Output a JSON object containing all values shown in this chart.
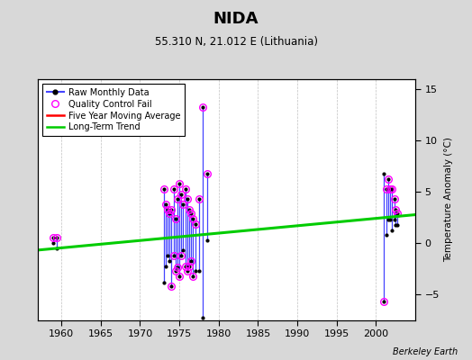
{
  "title": "NIDA",
  "subtitle": "55.310 N, 21.012 E (Lithuania)",
  "ylabel_right": "Temperature Anomaly (°C)",
  "credit": "Berkeley Earth",
  "xlim": [
    1957,
    2005
  ],
  "ylim": [
    -7.5,
    16
  ],
  "yticks": [
    -5,
    0,
    5,
    10,
    15
  ],
  "xticks": [
    1960,
    1965,
    1970,
    1975,
    1980,
    1985,
    1990,
    1995,
    2000
  ],
  "bg_color": "#d8d8d8",
  "plot_bg_color": "#ffffff",
  "raw_data_segments": [
    {
      "x": [
        1959.0,
        1959.0
      ],
      "y": [
        0.05,
        0.55
      ]
    },
    {
      "x": [
        1959.4,
        1959.4
      ],
      "y": [
        -0.5,
        0.55
      ]
    },
    {
      "x": [
        1973.0,
        1973.0
      ],
      "y": [
        -3.8,
        5.3
      ]
    },
    {
      "x": [
        1973.25,
        1973.25
      ],
      "y": [
        -2.2,
        3.8
      ]
    },
    {
      "x": [
        1973.5,
        1973.5
      ],
      "y": [
        -1.2,
        3.3
      ]
    },
    {
      "x": [
        1973.75,
        1973.75
      ],
      "y": [
        -1.7,
        2.9
      ]
    },
    {
      "x": [
        1974.0,
        1974.0
      ],
      "y": [
        -4.2,
        3.3
      ]
    },
    {
      "x": [
        1974.25,
        1974.25
      ],
      "y": [
        -1.2,
        5.3
      ]
    },
    {
      "x": [
        1974.5,
        1974.5
      ],
      "y": [
        -2.7,
        2.4
      ]
    },
    {
      "x": [
        1974.75,
        1974.75
      ],
      "y": [
        -2.3,
        4.3
      ]
    },
    {
      "x": [
        1975.0,
        1975.0
      ],
      "y": [
        -3.2,
        5.8
      ]
    },
    {
      "x": [
        1975.25,
        1975.25
      ],
      "y": [
        -1.2,
        4.8
      ]
    },
    {
      "x": [
        1975.5,
        1975.5
      ],
      "y": [
        -0.7,
        3.8
      ]
    },
    {
      "x": [
        1975.75,
        1975.75
      ],
      "y": [
        -2.2,
        5.3
      ]
    },
    {
      "x": [
        1976.0,
        1976.0
      ],
      "y": [
        -2.7,
        4.3
      ]
    },
    {
      "x": [
        1976.25,
        1976.25
      ],
      "y": [
        -2.2,
        3.3
      ]
    },
    {
      "x": [
        1976.5,
        1976.5
      ],
      "y": [
        -1.7,
        2.9
      ]
    },
    {
      "x": [
        1976.75,
        1976.75
      ],
      "y": [
        -3.2,
        2.4
      ]
    },
    {
      "x": [
        1977.0,
        1977.0
      ],
      "y": [
        -2.7,
        1.9
      ]
    },
    {
      "x": [
        1977.5,
        1977.5
      ],
      "y": [
        -2.7,
        4.3
      ]
    },
    {
      "x": [
        1978.0,
        1978.0
      ],
      "y": [
        -7.2,
        13.3
      ]
    },
    {
      "x": [
        1978.5,
        1978.5
      ],
      "y": [
        0.3,
        6.8
      ]
    },
    {
      "x": [
        2001.0,
        2001.0
      ],
      "y": [
        -5.7,
        6.8
      ]
    },
    {
      "x": [
        2001.33,
        2001.33
      ],
      "y": [
        0.8,
        5.3
      ]
    },
    {
      "x": [
        2001.5,
        2001.5
      ],
      "y": [
        2.3,
        6.3
      ]
    },
    {
      "x": [
        2001.75,
        2001.75
      ],
      "y": [
        2.3,
        5.3
      ]
    },
    {
      "x": [
        2002.0,
        2002.0
      ],
      "y": [
        1.3,
        5.3
      ]
    },
    {
      "x": [
        2002.33,
        2002.33
      ],
      "y": [
        2.3,
        4.3
      ]
    },
    {
      "x": [
        2002.5,
        2002.5
      ],
      "y": [
        1.8,
        3.3
      ]
    },
    {
      "x": [
        2002.75,
        2002.75
      ],
      "y": [
        1.8,
        2.9
      ]
    }
  ],
  "raw_points": [
    [
      1959.0,
      0.05
    ],
    [
      1959.0,
      0.55
    ],
    [
      1959.4,
      -0.5
    ],
    [
      1959.4,
      0.55
    ],
    [
      1973.0,
      -3.8
    ],
    [
      1973.0,
      5.3
    ],
    [
      1973.25,
      -2.2
    ],
    [
      1973.25,
      3.8
    ],
    [
      1973.5,
      -1.2
    ],
    [
      1973.5,
      3.3
    ],
    [
      1973.75,
      -1.7
    ],
    [
      1973.75,
      2.9
    ],
    [
      1974.0,
      -4.2
    ],
    [
      1974.0,
      3.3
    ],
    [
      1974.25,
      -1.2
    ],
    [
      1974.25,
      5.3
    ],
    [
      1974.5,
      -2.7
    ],
    [
      1974.5,
      2.4
    ],
    [
      1974.75,
      -2.3
    ],
    [
      1974.75,
      4.3
    ],
    [
      1975.0,
      -3.2
    ],
    [
      1975.0,
      5.8
    ],
    [
      1975.25,
      -1.2
    ],
    [
      1975.25,
      4.8
    ],
    [
      1975.5,
      -0.7
    ],
    [
      1975.5,
      3.8
    ],
    [
      1975.75,
      -2.2
    ],
    [
      1975.75,
      5.3
    ],
    [
      1976.0,
      -2.7
    ],
    [
      1976.0,
      4.3
    ],
    [
      1976.25,
      -2.2
    ],
    [
      1976.25,
      3.3
    ],
    [
      1976.5,
      -1.7
    ],
    [
      1976.5,
      2.9
    ],
    [
      1976.75,
      -3.2
    ],
    [
      1976.75,
      2.4
    ],
    [
      1977.0,
      -2.7
    ],
    [
      1977.0,
      1.9
    ],
    [
      1977.5,
      -2.7
    ],
    [
      1977.5,
      4.3
    ],
    [
      1978.0,
      -7.2
    ],
    [
      1978.0,
      13.3
    ],
    [
      1978.5,
      0.3
    ],
    [
      1978.5,
      6.8
    ],
    [
      2001.0,
      -5.7
    ],
    [
      2001.0,
      6.8
    ],
    [
      2001.33,
      0.8
    ],
    [
      2001.33,
      5.3
    ],
    [
      2001.5,
      2.3
    ],
    [
      2001.5,
      6.3
    ],
    [
      2001.75,
      2.3
    ],
    [
      2001.75,
      5.3
    ],
    [
      2002.0,
      1.3
    ],
    [
      2002.0,
      5.3
    ],
    [
      2002.33,
      2.3
    ],
    [
      2002.33,
      4.3
    ],
    [
      2002.5,
      1.8
    ],
    [
      2002.5,
      3.3
    ],
    [
      2002.75,
      1.8
    ],
    [
      2002.75,
      2.9
    ]
  ],
  "qc_fail_points": [
    [
      1959.0,
      0.55
    ],
    [
      1959.4,
      0.55
    ],
    [
      1973.0,
      5.3
    ],
    [
      1973.25,
      3.8
    ],
    [
      1973.5,
      3.3
    ],
    [
      1973.75,
      2.9
    ],
    [
      1974.0,
      3.3
    ],
    [
      1974.0,
      -4.2
    ],
    [
      1974.25,
      5.3
    ],
    [
      1974.25,
      -1.2
    ],
    [
      1974.5,
      -2.7
    ],
    [
      1974.5,
      2.4
    ],
    [
      1974.75,
      -2.3
    ],
    [
      1974.75,
      4.3
    ],
    [
      1975.0,
      5.8
    ],
    [
      1975.0,
      -3.2
    ],
    [
      1975.25,
      4.8
    ],
    [
      1975.25,
      -1.2
    ],
    [
      1975.5,
      3.8
    ],
    [
      1975.75,
      5.3
    ],
    [
      1975.75,
      -2.2
    ],
    [
      1976.0,
      4.3
    ],
    [
      1976.0,
      -2.7
    ],
    [
      1976.25,
      3.3
    ],
    [
      1976.25,
      -2.2
    ],
    [
      1976.5,
      2.9
    ],
    [
      1976.5,
      -1.7
    ],
    [
      1976.75,
      2.4
    ],
    [
      1976.75,
      -3.2
    ],
    [
      1977.0,
      1.9
    ],
    [
      1977.5,
      4.3
    ],
    [
      1978.0,
      13.3
    ],
    [
      1978.5,
      6.8
    ],
    [
      2001.0,
      -5.7
    ],
    [
      2001.33,
      5.3
    ],
    [
      2001.5,
      6.3
    ],
    [
      2001.75,
      5.3
    ],
    [
      2002.0,
      5.3
    ],
    [
      2002.33,
      4.3
    ],
    [
      2002.5,
      3.3
    ],
    [
      2002.75,
      2.9
    ]
  ],
  "trend_x": [
    1957,
    2005
  ],
  "trend_y": [
    -0.65,
    2.8
  ],
  "grid_color": "#c0c0c0",
  "raw_line_color": "#4444ff",
  "raw_point_color": "#000000",
  "qc_color": "#ff00ff",
  "trend_color": "#00cc00",
  "moving_avg_color": "#ff0000"
}
